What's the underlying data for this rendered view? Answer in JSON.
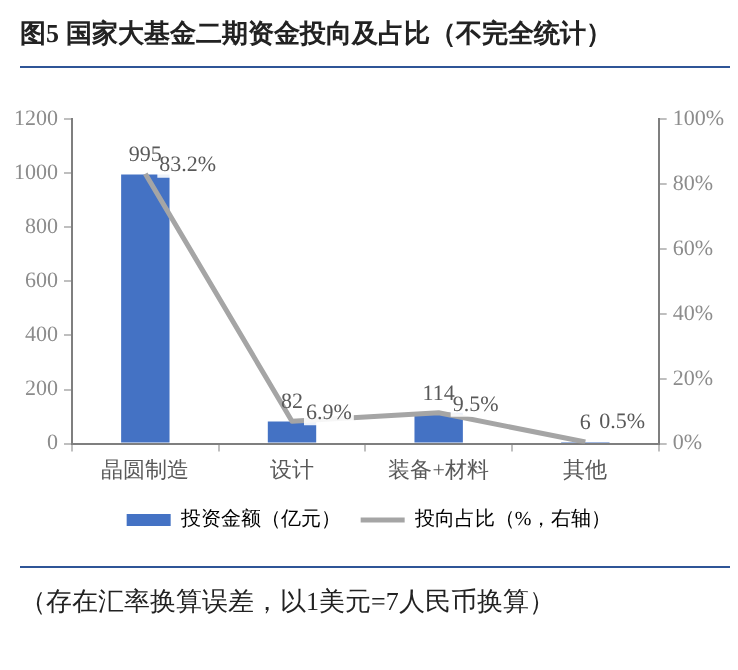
{
  "chart_data": {
    "type": "bar",
    "title": "图5 国家大基金二期资金投向及占比（不完全统计）",
    "categories": [
      "晶圆制造",
      "设计",
      "装备+材料",
      "其他"
    ],
    "series": [
      {
        "name": "投资金额（亿元）",
        "color": "#4472c4",
        "values": [
          995,
          82,
          114,
          6
        ],
        "value_labels": [
          "995",
          "82",
          "114",
          "6"
        ]
      },
      {
        "name": "投向占比（%，右轴）",
        "type": "line",
        "axis": "y2",
        "color": "#a5a5a5",
        "values": [
          83.2,
          6.9,
          9.5,
          0.5
        ],
        "value_labels": [
          "83.2%",
          "6.9%",
          "9.5%",
          "0.5%"
        ]
      }
    ],
    "ylim": [
      0,
      1200
    ],
    "yticks": [
      0,
      200,
      400,
      600,
      800,
      1000,
      1200
    ],
    "y2lim": [
      0,
      100
    ],
    "y2ticks": [
      {
        "value": 0,
        "label": "0%"
      },
      {
        "value": 20,
        "label": "20%"
      },
      {
        "value": 40,
        "label": "40%"
      },
      {
        "value": 60,
        "label": "60%"
      },
      {
        "value": 80,
        "label": "80%"
      },
      {
        "value": 100,
        "label": "100%"
      }
    ],
    "grid": false,
    "legend": "bottom",
    "marker": "none",
    "line_style": "solid",
    "annotations": [
      "（存在汇率换算误差，以1美元=7人民币换算）"
    ]
  }
}
